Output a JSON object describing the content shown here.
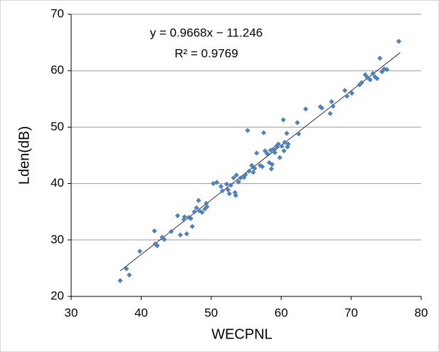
{
  "chart_data": {
    "type": "scatter",
    "x_label": "WECPNL",
    "y_label": "Lden(dB)",
    "annotations": [
      "y = 0.9668x − 11.246",
      "R² = 0.9769"
    ],
    "trendline": {
      "slope": 0.9668,
      "intercept": -11.246,
      "x": [
        37,
        77
      ],
      "color": "#000000"
    },
    "xlim": [
      30,
      80
    ],
    "xticks": [
      30,
      40,
      50,
      60,
      70,
      80
    ],
    "ylim": [
      20,
      70
    ],
    "yticks": [
      20,
      30,
      40,
      50,
      60,
      70
    ],
    "grid": true,
    "color": "#4f81bd",
    "x": [
      37.0,
      37.9,
      38.3,
      39.8,
      41.9,
      42.0,
      42.3,
      43.0,
      43.3,
      44.3,
      45.2,
      45.6,
      46.2,
      46.1,
      46.5,
      46.8,
      47.1,
      47.3,
      47.6,
      47.9,
      48.2,
      48.3,
      48.7,
      49.1,
      49.3,
      49.4,
      50.3,
      50.8,
      51.4,
      51.6,
      52.2,
      52.4,
      52.6,
      52.8,
      53.2,
      53.4,
      53.5,
      53.6,
      53.9,
      54.2,
      54.7,
      54.9,
      55.2,
      55.4,
      55.8,
      56.0,
      56.2,
      56.5,
      57.0,
      57.3,
      57.5,
      57.7,
      58.0,
      58.3,
      58.5,
      58.6,
      58.7,
      58.9,
      59.1,
      59.3,
      59.6,
      59.8,
      60.1,
      60.3,
      60.4,
      60.5,
      60.8,
      60.9,
      61.0,
      62.3,
      62.5,
      63.5,
      65.6,
      65.8,
      67.2,
      67.0,
      67.4,
      69.1,
      69.4,
      70.1,
      71.2,
      71.5,
      72.0,
      72.3,
      72.7,
      73.1,
      73.4,
      73.7,
      74.1,
      74.4,
      74.7,
      75.1,
      76.8
    ],
    "values": [
      22.8,
      24.9,
      23.8,
      28.0,
      31.6,
      29.3,
      29.0,
      30.5,
      30.1,
      31.5,
      34.3,
      30.9,
      34.1,
      33.6,
      31.1,
      34.0,
      33.8,
      32.4,
      35.0,
      35.7,
      37.0,
      35.2,
      34.9,
      35.5,
      36.5,
      35.9,
      40.0,
      40.2,
      39.5,
      38.7,
      39.9,
      38.9,
      38.2,
      39.7,
      41.0,
      38.4,
      37.9,
      41.5,
      40.3,
      41.0,
      41.1,
      41.6,
      49.4,
      42.2,
      43.2,
      42.0,
      42.7,
      45.4,
      43.2,
      43.0,
      49.0,
      45.8,
      45.3,
      43.7,
      45.9,
      42.6,
      43.4,
      46.1,
      45.5,
      46.6,
      47.0,
      44.6,
      46.6,
      51.3,
      45.8,
      47.3,
      48.9,
      46.5,
      47.0,
      50.8,
      48.8,
      53.2,
      53.6,
      53.4,
      54.5,
      52.4,
      53.7,
      56.5,
      55.5,
      56.0,
      57.5,
      57.9,
      59.3,
      58.8,
      58.4,
      59.5,
      58.9,
      58.6,
      62.2,
      59.8,
      60.3,
      60.2,
      65.2
    ]
  }
}
